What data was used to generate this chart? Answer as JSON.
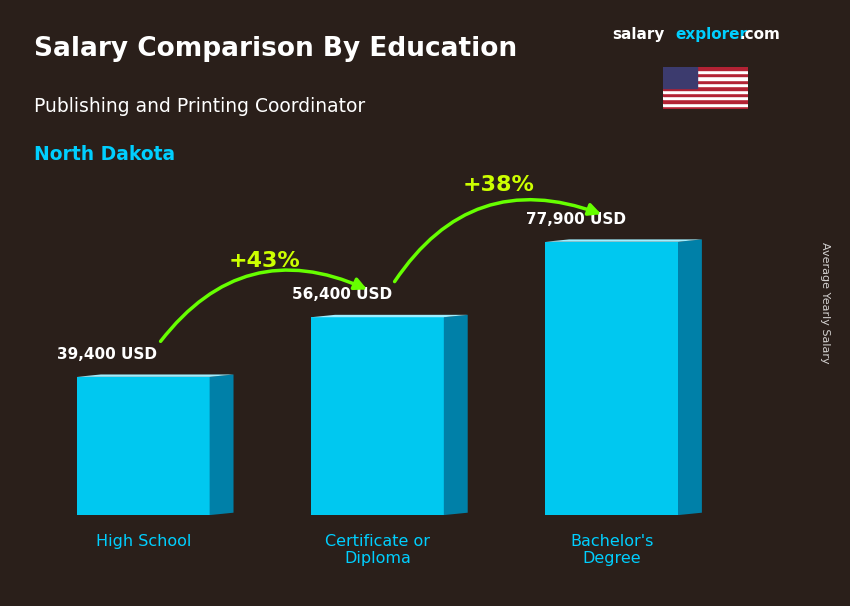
{
  "title_line1": "Salary Comparison By Education",
  "subtitle": "Publishing and Printing Coordinator",
  "location": "North Dakota",
  "categories": [
    "High School",
    "Certificate or\nDiploma",
    "Bachelor's\nDegree"
  ],
  "values": [
    39400,
    56400,
    77900
  ],
  "value_labels": [
    "39,400 USD",
    "56,400 USD",
    "77,900 USD"
  ],
  "pct_labels": [
    "+43%",
    "+38%"
  ],
  "bar_color_top": "#00cfff",
  "bar_color_mid": "#0099cc",
  "bar_color_dark": "#005f80",
  "bar_color_side": "#007aa3",
  "background_color": "#1a1a2e",
  "title_color": "#ffffff",
  "subtitle_color": "#ffffff",
  "location_color": "#00cfff",
  "value_label_color": "#ffffff",
  "pct_color": "#ccff00",
  "arrow_color": "#66ff00",
  "ylabel": "Average Yearly Salary",
  "brand_salary": "salary",
  "brand_explorer": "explorer",
  "brand_com": ".com",
  "ylim": [
    0,
    95000
  ]
}
